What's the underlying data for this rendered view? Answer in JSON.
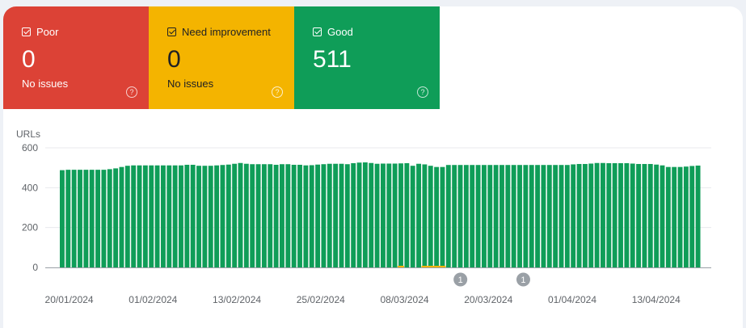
{
  "tiles": [
    {
      "label": "Poor",
      "count": "0",
      "sub": "No issues",
      "color": "#dc4236"
    },
    {
      "label": "Need improvement",
      "count": "0",
      "sub": "No issues",
      "color": "#f4b400"
    },
    {
      "label": "Good",
      "count": "511",
      "sub": "",
      "color": "#0f9d58"
    }
  ],
  "help_glyph": "?",
  "chart_data": {
    "type": "bar",
    "stacked": true,
    "ylabel": "URLs",
    "ylim": [
      0,
      600
    ],
    "yticks": [
      "0",
      "200",
      "400",
      "600"
    ],
    "grid": true,
    "xtick_labels": [
      "20/01/2024",
      "01/02/2024",
      "13/02/2024",
      "25/02/2024",
      "08/03/2024",
      "20/03/2024",
      "01/04/2024",
      "13/04/2024"
    ],
    "first_date": "19/01/2024",
    "last_date": "19/04/2024",
    "series": [
      {
        "name": "Good",
        "color": "#0f9d58",
        "values": [
          488,
          490,
          490,
          490,
          490,
          490,
          490,
          490,
          493,
          497,
          504,
          510,
          512,
          512,
          512,
          512,
          512,
          512,
          512,
          512,
          512,
          515,
          515,
          510,
          510,
          510,
          512,
          514,
          516,
          520,
          524,
          520,
          518,
          518,
          518,
          518,
          515,
          518,
          518,
          515,
          515,
          512,
          513,
          516,
          518,
          520,
          520,
          520,
          518,
          523,
          526,
          527,
          524,
          520,
          521,
          521,
          521,
          522,
          523,
          510,
          520,
          517,
          510,
          504,
          504,
          514,
          514,
          514,
          514,
          514,
          514,
          514,
          514,
          514,
          514,
          514,
          514,
          514,
          514,
          514,
          514,
          514,
          514,
          514,
          514,
          514,
          517,
          519,
          519,
          521,
          524,
          524,
          523,
          523,
          523,
          523,
          521,
          519,
          519,
          519,
          516,
          512,
          504,
          504,
          504,
          506,
          509,
          511
        ]
      },
      {
        "name": "Need improvement",
        "color": "#f4b400",
        "values": [
          0,
          0,
          0,
          0,
          0,
          0,
          0,
          0,
          0,
          0,
          0,
          0,
          0,
          0,
          0,
          0,
          0,
          0,
          0,
          0,
          0,
          0,
          0,
          0,
          0,
          0,
          0,
          0,
          0,
          0,
          0,
          0,
          0,
          0,
          0,
          0,
          0,
          0,
          0,
          0,
          0,
          0,
          0,
          0,
          0,
          0,
          0,
          0,
          0,
          0,
          0,
          0,
          0,
          0,
          0,
          0,
          0,
          6,
          0,
          0,
          0,
          6,
          6,
          6,
          6,
          0,
          0,
          0,
          0,
          0,
          0,
          0,
          0,
          0,
          0,
          0,
          0,
          0,
          0,
          0,
          0,
          0,
          0,
          0,
          0,
          0,
          0,
          0,
          0,
          0,
          0,
          0,
          0,
          0,
          0,
          0,
          0,
          0,
          0,
          0,
          0,
          0,
          0,
          0,
          0,
          0,
          0,
          0
        ]
      }
    ],
    "annotations": [
      {
        "label": "1",
        "date": "16/03/2024"
      },
      {
        "label": "1",
        "date": "25/03/2024"
      }
    ]
  }
}
